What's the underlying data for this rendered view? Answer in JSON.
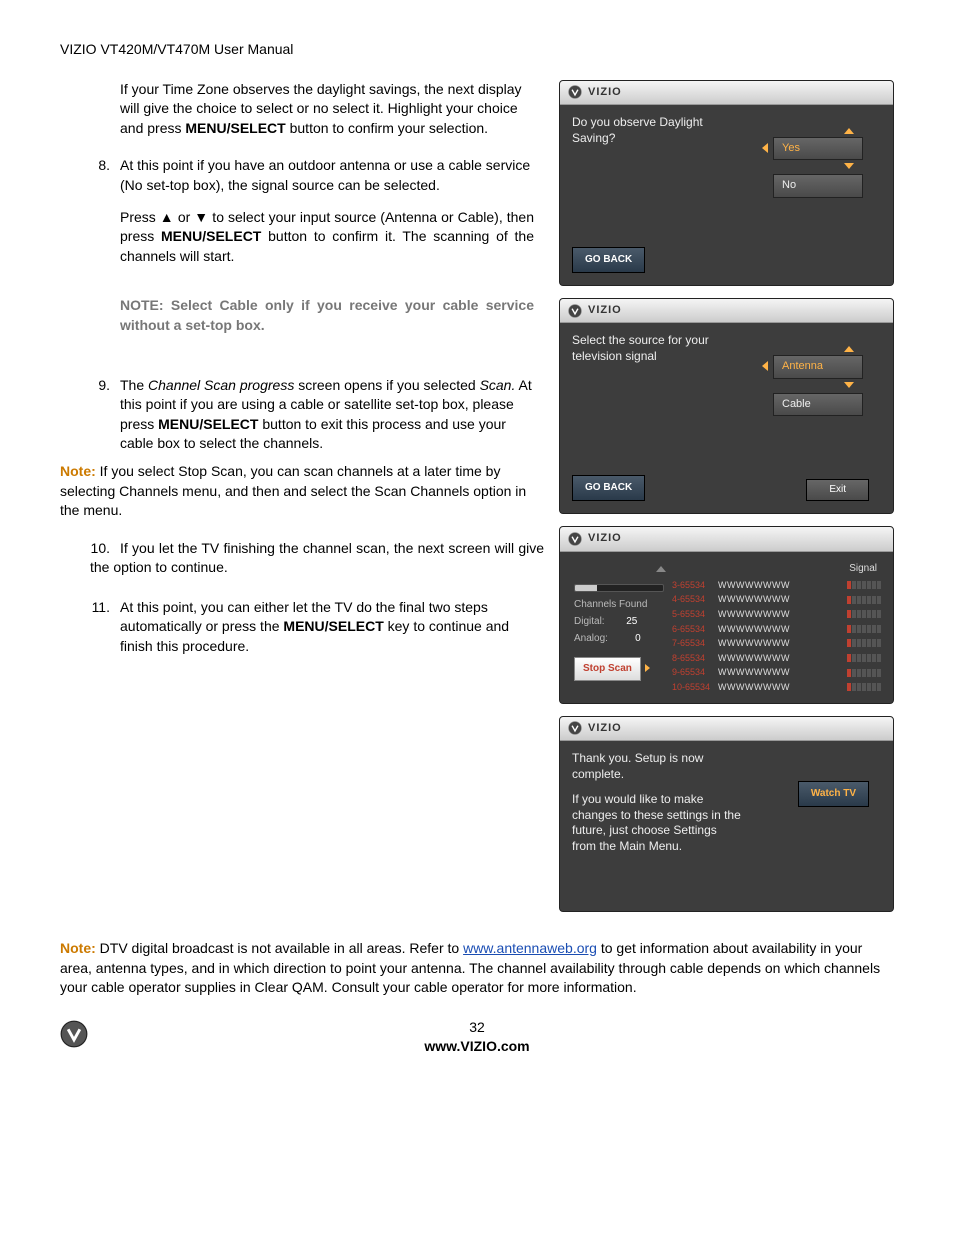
{
  "header": "VIZIO VT420M/VT470M User Manual",
  "left": {
    "p1a": "If your Time Zone observes the daylight savings, the next display will give the choice to select or no select it.  Highlight your choice and press ",
    "p1b": "MENU/SELECT",
    "p1c": " button to confirm your selection.",
    "n8": "8.",
    "p8a": "At this point if you have an outdoor antenna or use a cable service (No set-top box), the signal source can be selected.",
    "p8b_a": "Press ▲ or ▼ to select your input source (Antenna or Cable), then press ",
    "p8b_b": "MENU/SELECT",
    "p8b_c": " button to confirm it. The scanning of the channels will start.",
    "note8": "NOTE: Select Cable only if you receive your cable service without a set-top box.",
    "n9": "9.",
    "p9a": "The ",
    "p9b": "Channel Scan progress",
    "p9c": " screen opens if you selected ",
    "p9d": "Scan.",
    "p9e": " At this point if you are using a cable or satellite set-top box, please press ",
    "p9f": "MENU/SELECT",
    "p9g": " button to exit this process and use your cable box to select the channels.",
    "note9a": "Note:",
    "note9b": " If you select Stop Scan, you can scan channels at a later time by selecting Channels menu, and then and select the Scan Channels option in the menu.",
    "n10": "10.",
    "p10": "If you let the TV finishing the channel scan, the next screen will give the option to continue.",
    "n11": "11.",
    "p11a": "At this point, you can either let the TV do the final two steps automatically or press the ",
    "p11b": "MENU/SELECT",
    "p11c": " key to continue and finish this procedure."
  },
  "bottom": {
    "note_a": "Note:",
    "note_b": " DTV digital broadcast is not available in all areas. Refer to ",
    "note_link": "www.antennaweb.org",
    "note_c": " to get information about availability in your area, antenna types, and in which direction to point your antenna. The channel availability through cable depends on which channels your cable operator supplies in Clear QAM. Consult your cable operator for more information."
  },
  "footer": {
    "page": "32",
    "url": "www.VIZIO.com"
  },
  "screens": {
    "brand": "VIZIO",
    "s1": {
      "prompt": "Do you observe Daylight Saving?",
      "opt1": "Yes",
      "opt2": "No",
      "goback": "GO BACK"
    },
    "s2": {
      "prompt": "Select the source for your television signal",
      "opt1": "Antenna",
      "opt2": "Cable",
      "goback": "GO BACK",
      "exit": "Exit"
    },
    "s3": {
      "signal": "Signal",
      "channels_found": "Channels Found",
      "digital_label": "Digital:",
      "digital_val": "25",
      "analog_label": "Analog:",
      "analog_val": "0",
      "progress_pct": 25,
      "stop": "Stop Scan",
      "rows": [
        {
          "ch": "3-65534",
          "nm": "WWWWWWWW"
        },
        {
          "ch": "4-65534",
          "nm": "WWWWWWWW"
        },
        {
          "ch": "5-65534",
          "nm": "WWWWWWWW"
        },
        {
          "ch": "6-65534",
          "nm": "WWWWWWWW"
        },
        {
          "ch": "7-65534",
          "nm": "WWWWWWWW"
        },
        {
          "ch": "8-65534",
          "nm": "WWWWWWWW"
        },
        {
          "ch": "9-65534",
          "nm": "WWWWWWWW"
        },
        {
          "ch": "10-65534",
          "nm": "WWWWWWWW"
        }
      ]
    },
    "s4": {
      "line1": "Thank you. Setup is now complete.",
      "line2": "If you would like to make changes to these settings in the future, just choose Settings from the Main Menu.",
      "watch": "Watch TV"
    }
  }
}
